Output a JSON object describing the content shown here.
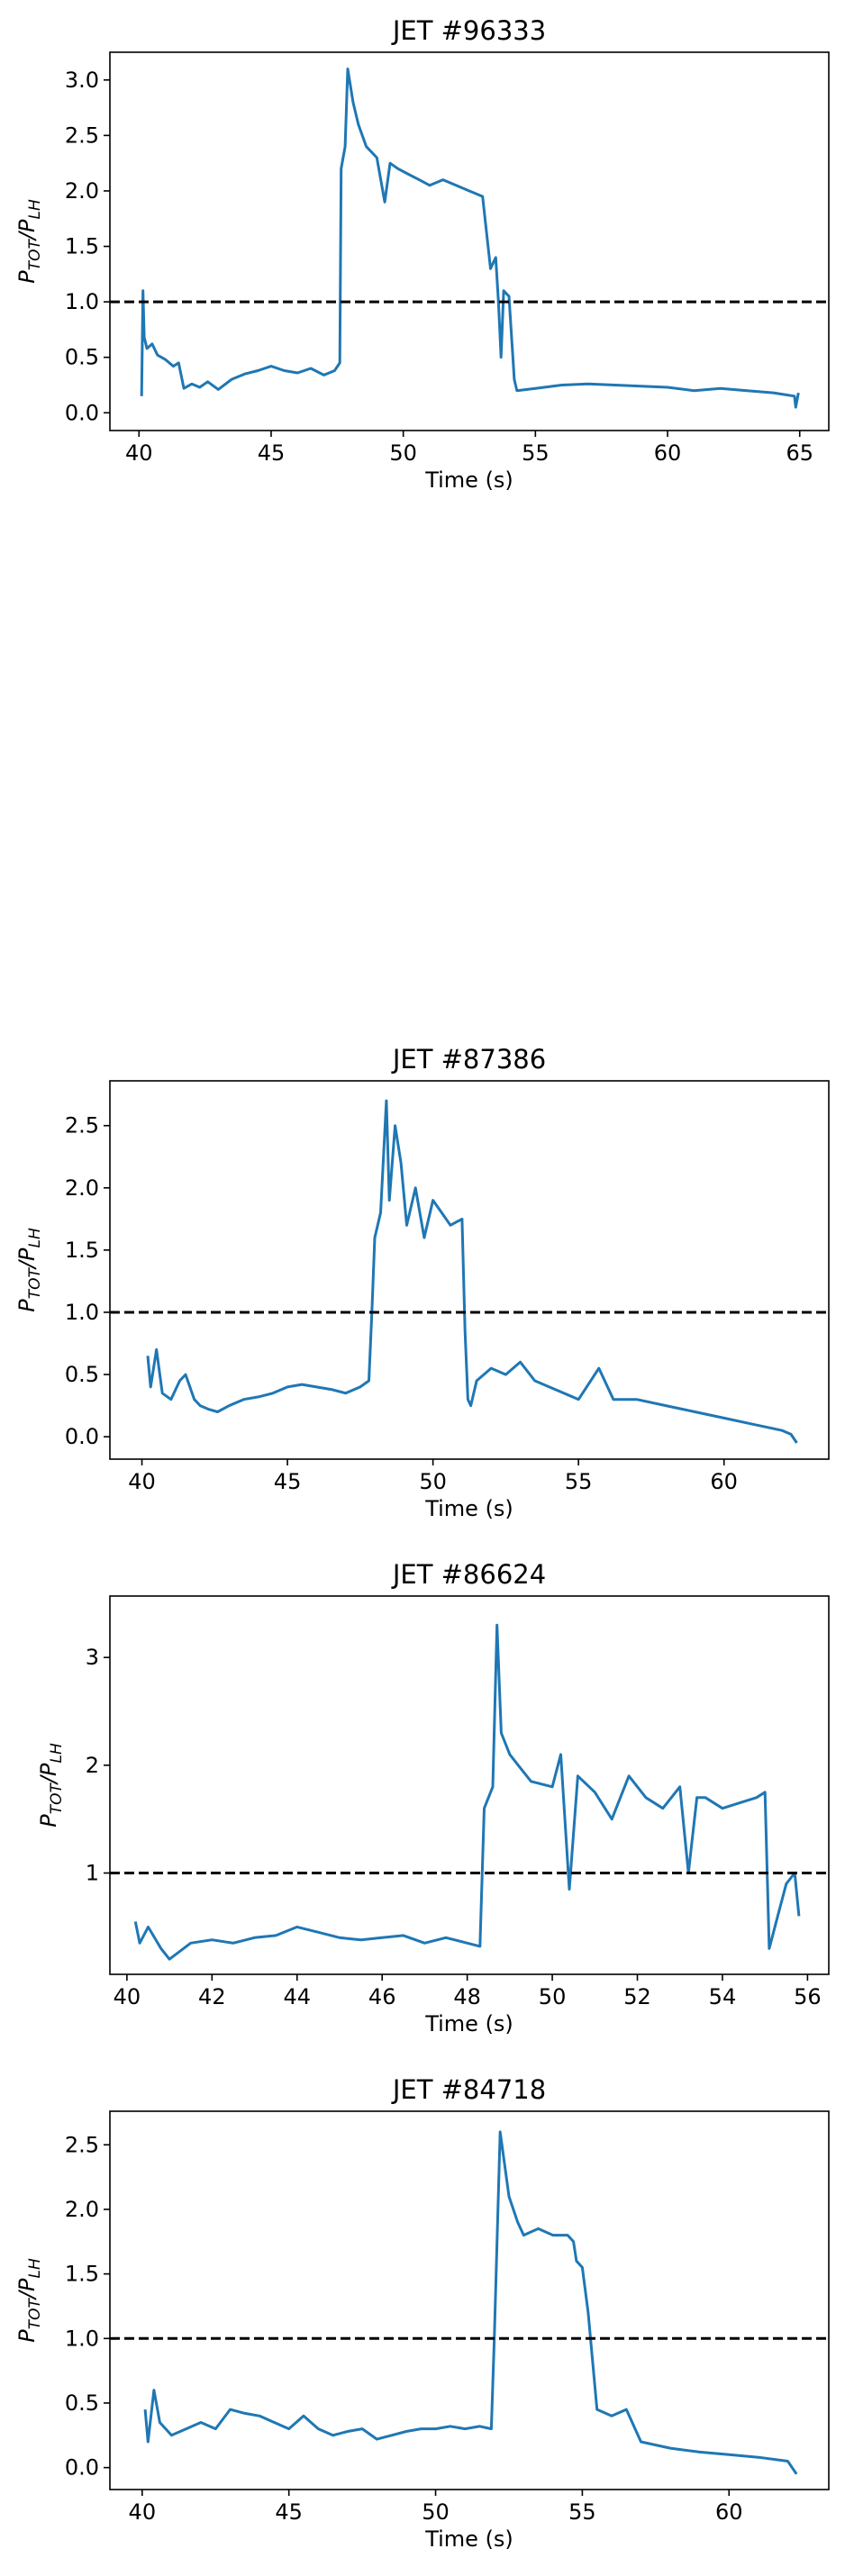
{
  "chart_data": [
    {
      "type": "line",
      "title": "JET #96333",
      "xlabel": "Time (s)",
      "ylabel": {
        "main": "P",
        "main_sub": "TOT",
        "sep": "/P",
        "den_sub": "LH"
      },
      "xlim": [
        38.9,
        66.1
      ],
      "ylim": [
        -0.16,
        3.25
      ],
      "xticks": [
        40,
        45,
        50,
        55,
        60,
        65
      ],
      "xtick_labels": [
        "40",
        "45",
        "50",
        "55",
        "60",
        "65"
      ],
      "yticks": [
        0.0,
        0.5,
        1.0,
        1.5,
        2.0,
        2.5,
        3.0
      ],
      "ytick_labels": [
        "0.0",
        "0.5",
        "1.0",
        "1.5",
        "2.0",
        "2.5",
        "3.0"
      ],
      "reference_line": {
        "y": 1.0,
        "style": "dashed",
        "color": "#000000"
      },
      "series": [
        {
          "color": "#1f77b4",
          "x": [
            40.1,
            40.15,
            40.2,
            40.3,
            40.5,
            40.7,
            41.0,
            41.3,
            41.5,
            41.7,
            42.0,
            42.3,
            42.6,
            43.0,
            43.5,
            44.0,
            44.5,
            45.0,
            45.5,
            46.0,
            46.5,
            47.0,
            47.4,
            47.6,
            47.65,
            47.8,
            47.9,
            48.1,
            48.3,
            48.6,
            49.0,
            49.3,
            49.5,
            49.8,
            50.2,
            50.6,
            51.0,
            51.5,
            52.0,
            52.5,
            53.0,
            53.3,
            53.5,
            53.6,
            53.7,
            53.8,
            54.0,
            54.2,
            54.3,
            55.0,
            56.0,
            57.0,
            58.0,
            59.0,
            60.0,
            61.0,
            62.0,
            63.0,
            64.0,
            64.8,
            64.85,
            64.95
          ],
          "y": [
            0.15,
            1.1,
            0.68,
            0.58,
            0.62,
            0.52,
            0.48,
            0.42,
            0.45,
            0.22,
            0.26,
            0.23,
            0.28,
            0.21,
            0.3,
            0.35,
            0.38,
            0.42,
            0.38,
            0.36,
            0.4,
            0.34,
            0.38,
            0.45,
            2.2,
            2.4,
            3.1,
            2.8,
            2.6,
            2.4,
            2.3,
            1.9,
            2.25,
            2.2,
            2.15,
            2.1,
            2.05,
            2.1,
            2.05,
            2.0,
            1.95,
            1.3,
            1.4,
            1.0,
            0.5,
            1.1,
            1.05,
            0.3,
            0.2,
            0.22,
            0.25,
            0.26,
            0.25,
            0.24,
            0.23,
            0.2,
            0.22,
            0.2,
            0.18,
            0.15,
            0.05,
            0.18
          ]
        }
      ]
    },
    {
      "type": "line",
      "title": "JET #87386",
      "xlabel": "Time (s)",
      "ylabel": {
        "main": "P",
        "main_sub": "TOT",
        "sep": "/P",
        "den_sub": "LH"
      },
      "xlim": [
        38.9,
        63.6
      ],
      "ylim": [
        -0.18,
        2.86
      ],
      "xticks": [
        40,
        45,
        50,
        55,
        60
      ],
      "xtick_labels": [
        "40",
        "45",
        "50",
        "55",
        "60"
      ],
      "yticks": [
        0.0,
        0.5,
        1.0,
        1.5,
        2.0,
        2.5
      ],
      "ytick_labels": [
        "0.0",
        "0.5",
        "1.0",
        "1.5",
        "2.0",
        "2.5"
      ],
      "reference_line": {
        "y": 1.0,
        "style": "dashed",
        "color": "#000000"
      },
      "series": [
        {
          "color": "#1f77b4",
          "x": [
            40.2,
            40.3,
            40.5,
            40.7,
            41.0,
            41.3,
            41.5,
            41.8,
            42.0,
            42.3,
            42.6,
            43.0,
            43.5,
            44.0,
            44.5,
            45.0,
            45.5,
            46.0,
            46.5,
            47.0,
            47.5,
            47.8,
            47.9,
            48.0,
            48.2,
            48.4,
            48.5,
            48.7,
            48.9,
            49.1,
            49.4,
            49.7,
            50.0,
            50.3,
            50.6,
            51.0,
            51.1,
            51.2,
            51.3,
            51.5,
            52.0,
            52.5,
            53.0,
            53.5,
            54.0,
            55.0,
            55.7,
            56.2,
            57.0,
            58.0,
            59.0,
            60.0,
            61.0,
            62.0,
            62.3,
            62.5
          ],
          "y": [
            0.65,
            0.4,
            0.7,
            0.35,
            0.3,
            0.45,
            0.5,
            0.3,
            0.25,
            0.22,
            0.2,
            0.25,
            0.3,
            0.32,
            0.35,
            0.4,
            0.42,
            0.4,
            0.38,
            0.35,
            0.4,
            0.45,
            1.0,
            1.6,
            1.8,
            2.7,
            1.9,
            2.5,
            2.2,
            1.7,
            2.0,
            1.6,
            1.9,
            1.8,
            1.7,
            1.75,
            0.85,
            0.3,
            0.25,
            0.45,
            0.55,
            0.5,
            0.6,
            0.45,
            0.4,
            0.3,
            0.55,
            0.3,
            0.3,
            0.25,
            0.2,
            0.15,
            0.1,
            0.05,
            0.02,
            -0.05
          ]
        }
      ]
    },
    {
      "type": "line",
      "title": "JET #86624",
      "xlabel": "Time (s)",
      "ylabel": {
        "main": "P",
        "main_sub": "TOT",
        "sep": "/P",
        "den_sub": "LH"
      },
      "xlim": [
        39.6,
        56.5
      ],
      "ylim": [
        0.06,
        3.57
      ],
      "xticks": [
        40,
        42,
        44,
        46,
        48,
        50,
        52,
        54,
        56
      ],
      "xtick_labels": [
        "40",
        "42",
        "44",
        "46",
        "48",
        "50",
        "52",
        "54",
        "56"
      ],
      "yticks": [
        1,
        2,
        3
      ],
      "ytick_labels": [
        "1",
        "2",
        "3"
      ],
      "reference_line": {
        "y": 1.0,
        "style": "dashed",
        "color": "#000000"
      },
      "series": [
        {
          "color": "#1f77b4",
          "x": [
            40.2,
            40.3,
            40.5,
            40.8,
            41.0,
            41.5,
            42.0,
            42.5,
            43.0,
            43.5,
            44.0,
            44.5,
            45.0,
            45.5,
            46.0,
            46.5,
            47.0,
            47.5,
            48.0,
            48.3,
            48.4,
            48.6,
            48.7,
            48.8,
            49.0,
            49.2,
            49.5,
            50.0,
            50.2,
            50.4,
            50.6,
            51.0,
            51.4,
            51.8,
            52.2,
            52.6,
            53.0,
            53.2,
            53.4,
            53.6,
            54.0,
            54.4,
            54.8,
            55.0,
            55.1,
            55.3,
            55.5,
            55.7,
            55.8
          ],
          "y": [
            0.55,
            0.35,
            0.5,
            0.3,
            0.2,
            0.35,
            0.38,
            0.35,
            0.4,
            0.42,
            0.5,
            0.45,
            0.4,
            0.38,
            0.4,
            0.42,
            0.35,
            0.4,
            0.35,
            0.32,
            1.6,
            1.8,
            3.3,
            2.3,
            2.1,
            2.0,
            1.85,
            1.8,
            2.1,
            0.85,
            1.9,
            1.75,
            1.5,
            1.9,
            1.7,
            1.6,
            1.8,
            1.0,
            1.7,
            1.7,
            1.6,
            1.65,
            1.7,
            1.75,
            0.3,
            0.6,
            0.9,
            1.0,
            0.6
          ]
        }
      ]
    },
    {
      "type": "line",
      "title": "JET #84718",
      "xlabel": "Time (s)",
      "ylabel": {
        "main": "P",
        "main_sub": "TOT",
        "sep": "/P",
        "den_sub": "LH"
      },
      "xlim": [
        38.9,
        63.4
      ],
      "ylim": [
        -0.17,
        2.76
      ],
      "xticks": [
        40,
        45,
        50,
        55,
        60
      ],
      "xtick_labels": [
        "40",
        "45",
        "50",
        "55",
        "60"
      ],
      "yticks": [
        0.0,
        0.5,
        1.0,
        1.5,
        2.0,
        2.5
      ],
      "ytick_labels": [
        "0.0",
        "0.5",
        "1.0",
        "1.5",
        "2.0",
        "2.5"
      ],
      "reference_line": {
        "y": 1.0,
        "style": "dashed",
        "color": "#000000"
      },
      "series": [
        {
          "color": "#1f77b4",
          "x": [
            40.1,
            40.2,
            40.4,
            40.6,
            41.0,
            41.5,
            42.0,
            42.5,
            43.0,
            43.5,
            44.0,
            44.5,
            45.0,
            45.5,
            46.0,
            46.5,
            47.0,
            47.5,
            48.0,
            48.5,
            49.0,
            49.5,
            50.0,
            50.5,
            51.0,
            51.5,
            51.9,
            52.0,
            52.2,
            52.5,
            52.8,
            53.0,
            53.5,
            54.0,
            54.5,
            54.7,
            54.8,
            55.0,
            55.2,
            55.5,
            56.0,
            56.5,
            57.0,
            58.0,
            59.0,
            60.0,
            61.0,
            62.0,
            62.3
          ],
          "y": [
            0.45,
            0.2,
            0.6,
            0.35,
            0.25,
            0.3,
            0.35,
            0.3,
            0.45,
            0.42,
            0.4,
            0.35,
            0.3,
            0.4,
            0.3,
            0.25,
            0.28,
            0.3,
            0.22,
            0.25,
            0.28,
            0.3,
            0.3,
            0.32,
            0.3,
            0.32,
            0.3,
            1.0,
            2.6,
            2.1,
            1.9,
            1.8,
            1.85,
            1.8,
            1.8,
            1.75,
            1.6,
            1.55,
            1.2,
            0.45,
            0.4,
            0.45,
            0.2,
            0.15,
            0.12,
            0.1,
            0.08,
            0.05,
            -0.05
          ]
        }
      ]
    }
  ]
}
